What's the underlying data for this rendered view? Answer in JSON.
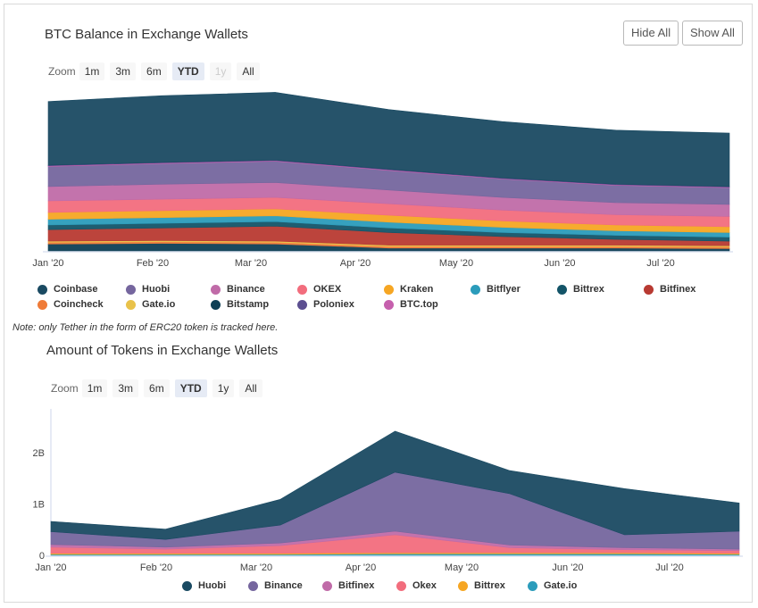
{
  "colors": {
    "coinbase": "#1a4a62",
    "huobi": "#75669e",
    "binance": "#c06ba8",
    "okex": "#f26d7d",
    "kraken": "#f6a623",
    "bitflyer": "#2b9cbb",
    "bittrex": "#135468",
    "bitfinex": "#b83a32",
    "coincheck": "#ef7b38",
    "gateio": "#e9c24a",
    "bitstamp": "#0e3f55",
    "poloniex": "#5c4f90",
    "btctop": "#c660ad"
  },
  "buttons": {
    "hide_all": "Hide All",
    "show_all": "Show All"
  },
  "zoom": {
    "label": "Zoom",
    "options": [
      "1m",
      "3m",
      "6m",
      "YTD",
      "1y",
      "All"
    ],
    "selected": "YTD"
  },
  "note": "Note: only Tether in the form of ERC20 token is tracked here.",
  "chart_data": [
    {
      "type": "area",
      "stacked": true,
      "title": "BTC Balance in Exchange Wallets",
      "x": [
        "Jan '20",
        "Feb '20",
        "Mar '20",
        "Apr '20",
        "May '20",
        "Jun '20",
        "Jul '20"
      ],
      "xlabel": "",
      "ylabel": "",
      "series": [
        {
          "name": "Bitstamp",
          "color": "#0e3f55",
          "values": [
            12,
            13,
            12,
            5,
            5,
            5,
            4
          ]
        },
        {
          "name": "Coincheck",
          "color": "#ef7b38",
          "values": [
            3,
            3,
            3,
            3,
            3,
            3,
            3
          ]
        },
        {
          "name": "Gate.io",
          "color": "#e9c24a",
          "values": [
            2,
            2,
            2,
            2,
            2,
            2,
            2
          ]
        },
        {
          "name": "Bitfinex",
          "color": "#b83a32",
          "values": [
            20,
            22,
            26,
            22,
            15,
            10,
            8
          ]
        },
        {
          "name": "Bittrex",
          "color": "#135468",
          "values": [
            8,
            8,
            8,
            8,
            7,
            7,
            7
          ]
        },
        {
          "name": "Bitflyer",
          "color": "#2b9cbb",
          "values": [
            10,
            10,
            10,
            10,
            9,
            8,
            8
          ]
        },
        {
          "name": "Kraken",
          "color": "#f6a623",
          "values": [
            12,
            12,
            12,
            12,
            11,
            10,
            10
          ]
        },
        {
          "name": "OKEX",
          "color": "#f26d7d",
          "values": [
            20,
            20,
            20,
            20,
            19,
            18,
            18
          ]
        },
        {
          "name": "Binance",
          "color": "#c06ba8",
          "values": [
            25,
            26,
            26,
            24,
            22,
            21,
            21
          ]
        },
        {
          "name": "Huobi",
          "color": "#75669e",
          "values": [
            35,
            36,
            37,
            34,
            32,
            30,
            29
          ]
        },
        {
          "name": "BTC.top",
          "color": "#c660ad",
          "values": [
            1,
            1,
            1,
            1,
            1,
            1,
            1
          ]
        },
        {
          "name": "Poloniex",
          "color": "#5c4f90",
          "values": [
            1,
            1,
            1,
            1,
            1,
            1,
            1
          ]
        },
        {
          "name": "Coinbase",
          "color": "#1a4a62",
          "values": [
            111,
            116,
            118,
            104,
            98,
            94,
            93
          ]
        }
      ],
      "legend": [
        "Coinbase",
        "Huobi",
        "Binance",
        "OKEX",
        "Kraken",
        "Bitflyer",
        "Bittrex",
        "Bitfinex",
        "Coincheck",
        "Gate.io",
        "Bitstamp",
        "Poloniex",
        "BTC.top"
      ]
    },
    {
      "type": "area",
      "stacked": true,
      "title": "Amount of Tokens in Exchange Wallets",
      "x": [
        "Jan '20",
        "Feb '20",
        "Mar '20",
        "Apr '20",
        "May '20",
        "Jun '20",
        "Jul '20"
      ],
      "y_ticks": [
        "0",
        "1B",
        "2B"
      ],
      "ylim": [
        0,
        3
      ],
      "series": [
        {
          "name": "Gate.io",
          "color": "#2b9cbb",
          "values": [
            0.02,
            0.02,
            0.02,
            0.03,
            0.03,
            0.03,
            0.02
          ]
        },
        {
          "name": "Bittrex",
          "color": "#f6a623",
          "values": [
            0.02,
            0.02,
            0.02,
            0.02,
            0.02,
            0.02,
            0.02
          ]
        },
        {
          "name": "Okex",
          "color": "#f26d7d",
          "values": [
            0.12,
            0.08,
            0.15,
            0.35,
            0.1,
            0.06,
            0.05
          ]
        },
        {
          "name": "Bitfinex",
          "color": "#c06ba8",
          "values": [
            0.05,
            0.04,
            0.05,
            0.07,
            0.05,
            0.04,
            0.03
          ]
        },
        {
          "name": "Binance",
          "color": "#75669e",
          "values": [
            0.25,
            0.15,
            0.35,
            1.15,
            1.0,
            0.25,
            0.35
          ]
        },
        {
          "name": "Huobi",
          "color": "#1a4a62",
          "values": [
            0.2,
            0.2,
            0.5,
            0.8,
            0.45,
            0.9,
            0.55
          ]
        }
      ],
      "legend": [
        "Huobi",
        "Binance",
        "Bitfinex",
        "Okex",
        "Bittrex",
        "Gate.io"
      ]
    }
  ]
}
